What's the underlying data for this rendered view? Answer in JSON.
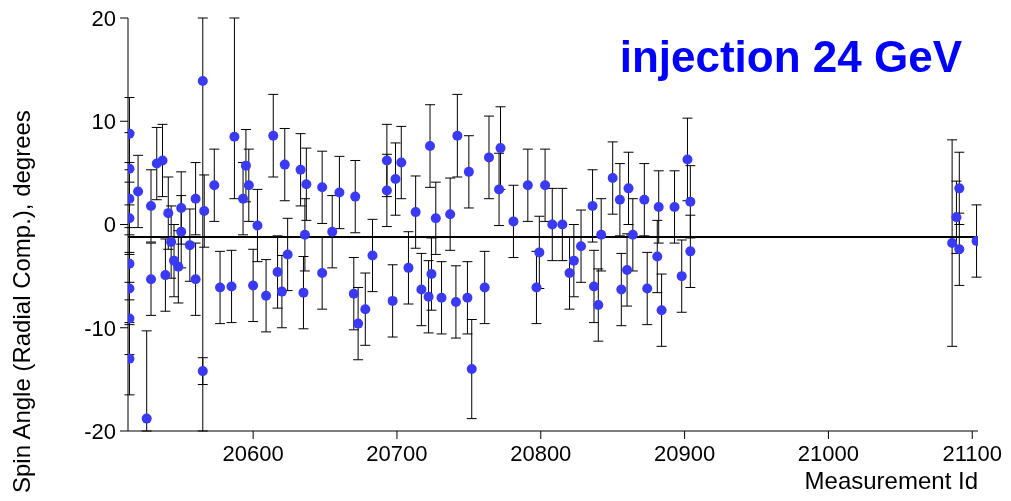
{
  "chart_data": {
    "type": "scatter",
    "title": "injection 24 GeV",
    "xlabel": "Measurement Id",
    "ylabel": "Spin Angle (Radial Comp.), degrees",
    "xlim": [
      20513,
      21104
    ],
    "xticks": [
      20600,
      20700,
      20800,
      20900,
      21000,
      21100
    ],
    "ylim": [
      -20,
      20
    ],
    "yticks": [
      -20,
      -10,
      0,
      10,
      20
    ],
    "grid": false,
    "series": [
      {
        "color": "#3a3af5",
        "marker": "circle",
        "x": [
          20514,
          20514,
          20514,
          20514,
          20514,
          20514,
          20514,
          20514,
          20520,
          20526,
          20529,
          20529,
          20533,
          20537,
          20539,
          20541,
          20545,
          20550,
          20550,
          20548,
          20560,
          20560,
          20565,
          20565,
          20566,
          20573,
          20577,
          20587,
          20585,
          20595,
          20597,
          20593,
          20600,
          20614,
          20622,
          20620,
          20603,
          20609,
          20633,
          20635,
          20637,
          20648,
          20648,
          20660,
          20671,
          20670,
          20673,
          20678,
          20683,
          20693,
          20693,
          20697,
          20703,
          20699,
          20708,
          20655,
          20617,
          20624,
          20543,
          20556,
          20636,
          20723,
          20742,
          20750,
          20752,
          20741,
          20749,
          20764,
          20772,
          20771,
          20761,
          20717,
          20722,
          20731,
          20713,
          20727,
          20737,
          20724,
          20781,
          20791,
          20803,
          20797,
          20799,
          20815,
          20820,
          20823,
          20836,
          20837,
          20840,
          20850,
          20855,
          20856,
          20861,
          20860,
          20872,
          20874,
          20882,
          20884,
          20881,
          20893,
          20898,
          20902,
          20904,
          20904,
          20842,
          20864,
          20828,
          20808,
          21086,
          21091,
          21089,
          21091,
          21103
        ],
        "values": [
          8.8,
          5.4,
          2.5,
          0.6,
          -3.8,
          -6.2,
          -9.1,
          -13.0,
          3.2,
          -18.8,
          1.8,
          -5.3,
          5.9,
          6.2,
          -4.9,
          1.1,
          -3.5,
          1.6,
          -0.7,
          -4.1,
          2.5,
          -5.3,
          13.9,
          -14.2,
          1.3,
          3.8,
          -6.1,
          8.5,
          -6.0,
          5.7,
          3.8,
          2.5,
          -5.9,
          8.6,
          5.8,
          -6.5,
          -0.1,
          -6.9,
          5.3,
          -6.6,
          3.9,
          3.6,
          -4.7,
          3.1,
          2.7,
          -6.7,
          -9.6,
          -8.2,
          -3.0,
          6.2,
          3.3,
          -7.4,
          6.0,
          4.4,
          -4.2,
          -0.7,
          -4.6,
          -2.9,
          -1.7,
          -2.0,
          -1.0,
          7.6,
          8.6,
          5.1,
          -14.0,
          -7.5,
          -7.1,
          6.5,
          7.4,
          3.4,
          -6.1,
          -6.3,
          -7.0,
          -7.1,
          1.2,
          0.6,
          1.0,
          -4.8,
          0.3,
          3.8,
          3.8,
          -6.1,
          -2.7,
          0.0,
          -4.7,
          -3.5,
          1.8,
          -6.0,
          -7.8,
          4.5,
          2.4,
          -6.3,
          3.5,
          -4.4,
          2.4,
          -6.2,
          1.7,
          -8.3,
          -3.1,
          1.7,
          -5.0,
          6.3,
          2.2,
          -2.6,
          -1.0,
          -1.0,
          -2.1,
          0.0,
          -1.8,
          3.5,
          0.7,
          -2.4,
          -1.6
        ],
        "errors": [
          3.5,
          3.5,
          3.5,
          3.5,
          3.5,
          3.5,
          3.5,
          3.5,
          3.5,
          [
            -20,
            -10.3
          ],
          3.5,
          3.5,
          3.5,
          3.5,
          3.5,
          3.5,
          3.5,
          3.5,
          3.5,
          3.5,
          3.5,
          3.5,
          [
            -20,
            20
          ],
          [
            -15.5,
            -12.9
          ],
          3.5,
          3.5,
          3.5,
          [
            2.5,
            20
          ],
          3.5,
          3.5,
          3.5,
          3.5,
          3.5,
          4,
          3.5,
          3.5,
          3.5,
          3.5,
          3.5,
          3.5,
          3.5,
          3.5,
          3.5,
          3.5,
          3.5,
          3.5,
          3.5,
          3.5,
          3.5,
          3.5,
          3.5,
          3.5,
          3.5,
          3.5,
          3.5,
          3.5,
          3.5,
          3.5,
          3.5,
          3.5,
          3.5,
          4,
          4,
          3.5,
          4.8,
          3.5,
          3.5,
          4,
          4,
          3.5,
          3.5,
          3.5,
          3.5,
          3.5,
          3.5,
          3.5,
          3.5,
          3.5,
          3.5,
          3.5,
          3.5,
          3.5,
          3.5,
          3.5,
          3.5,
          3.5,
          3.5,
          3.5,
          3.5,
          3.5,
          3.5,
          3.5,
          3.5,
          3.5,
          3.5,
          3.5,
          3.5,
          3.5,
          3.5,
          3.5,
          3.5,
          4,
          3.5,
          3.5,
          3.5,
          3.5,
          3.5,
          3.5,
          10,
          3.5,
          3.5,
          3.5,
          3.5
        ]
      },
      {
        "type": "line",
        "color": "#000000",
        "line_style": "solid",
        "marker": "none",
        "x": [
          20513,
          21104
        ],
        "values": [
          -1.2,
          -1.2
        ]
      }
    ]
  }
}
